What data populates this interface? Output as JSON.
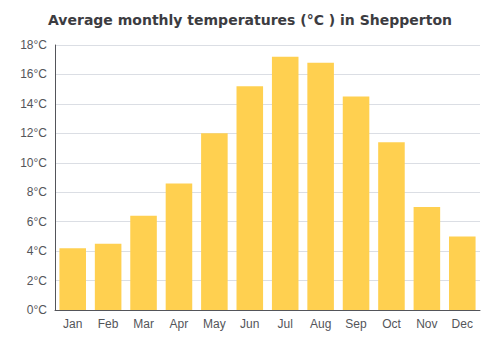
{
  "chart_data": {
    "type": "bar",
    "title": "Average monthly temperatures (°C ) in Shepperton",
    "categories": [
      "Jan",
      "Feb",
      "Mar",
      "Apr",
      "May",
      "Jun",
      "Jul",
      "Aug",
      "Sep",
      "Oct",
      "Nov",
      "Dec"
    ],
    "values": [
      4.2,
      4.5,
      6.4,
      8.6,
      12.0,
      15.2,
      17.2,
      16.8,
      14.5,
      11.4,
      7.0,
      5.0
    ],
    "color": "#FFD050",
    "ylim": [
      0,
      18
    ],
    "yticks": [
      {
        "value": 0,
        "label": "0°C"
      },
      {
        "value": 2,
        "label": "2°C"
      },
      {
        "value": 4,
        "label": "4°C"
      },
      {
        "value": 6,
        "label": "6°C"
      },
      {
        "value": 8,
        "label": "8°C"
      },
      {
        "value": 10,
        "label": "10°C"
      },
      {
        "value": 12,
        "label": "12°C"
      },
      {
        "value": 14,
        "label": "14°C"
      },
      {
        "value": 16,
        "label": "16°C"
      },
      {
        "value": 18,
        "label": "18°C"
      }
    ],
    "grid": true
  }
}
